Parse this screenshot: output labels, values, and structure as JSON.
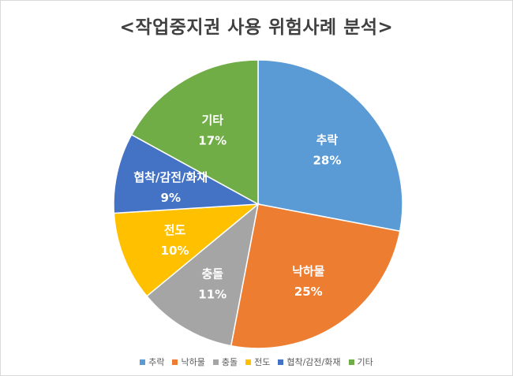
{
  "chart_data": {
    "type": "pie",
    "title": "<작업중지권 사용 위험사례 분석>",
    "slices": [
      {
        "label": "추락",
        "value": 28,
        "value_label": "28%",
        "color": "#5b9bd5"
      },
      {
        "label": "낙하물",
        "value": 25,
        "value_label": "25%",
        "color": "#ed7d31"
      },
      {
        "label": "충돌",
        "value": 11,
        "value_label": "11%",
        "color": "#a5a5a5"
      },
      {
        "label": "전도",
        "value": 10,
        "value_label": "10%",
        "color": "#ffc000"
      },
      {
        "label": "협착/감전/화재",
        "value": 9,
        "value_label": "9%",
        "color": "#4472c4"
      },
      {
        "label": "기타",
        "value": 17,
        "value_label": "17%",
        "color": "#70ad47"
      }
    ],
    "legend_position": "bottom",
    "start_angle": "12 o'clock",
    "direction": "clockwise"
  }
}
